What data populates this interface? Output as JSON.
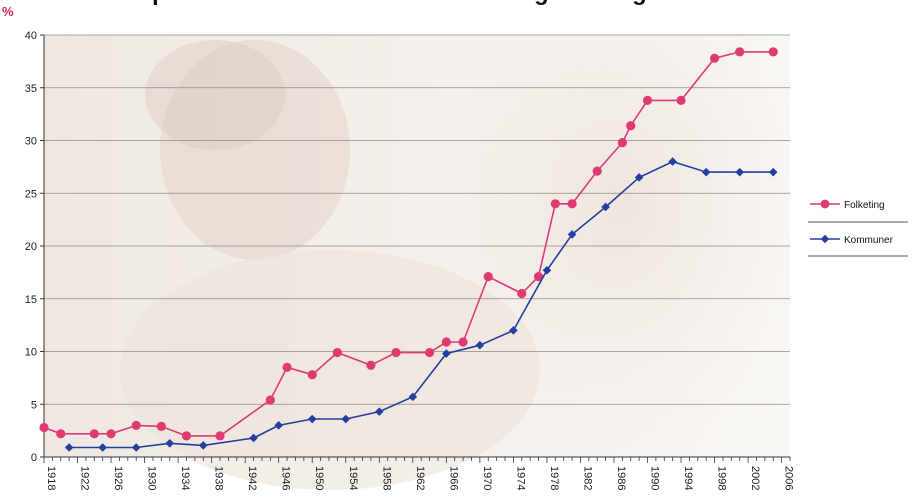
{
  "chart_data": {
    "type": "line",
    "title_visible_fragment": "p",
    "title_visible_fragment_2": "g",
    "title_visible_fragment_3": "g",
    "y_unit": "%",
    "ylim": [
      0,
      40
    ],
    "y_ticks": [
      0,
      5,
      10,
      15,
      20,
      25,
      30,
      35,
      40
    ],
    "xlim": [
      1918,
      2007
    ],
    "x_tick_labels": [
      "1918",
      "1922",
      "1926",
      "1930",
      "1934",
      "1938",
      "1942",
      "1946",
      "1950",
      "1954",
      "1958",
      "1962",
      "1966",
      "1970",
      "1974",
      "1978",
      "1982",
      "1986",
      "1990",
      "1994",
      "1998",
      "2002",
      "2006"
    ],
    "grid": true,
    "legend_position": "right",
    "series": [
      {
        "name": "Folketing",
        "color": "#e03a72",
        "marker": "circle",
        "points": [
          [
            1918,
            2.8
          ],
          [
            1920,
            2.2
          ],
          [
            1924,
            2.2
          ],
          [
            1926,
            2.2
          ],
          [
            1929,
            3.0
          ],
          [
            1932,
            2.9
          ],
          [
            1935,
            2.0
          ],
          [
            1939,
            2.0
          ],
          [
            1945,
            5.4
          ],
          [
            1947,
            8.5
          ],
          [
            1950,
            7.8
          ],
          [
            1953,
            9.9
          ],
          [
            1957,
            8.7
          ],
          [
            1960,
            9.9
          ],
          [
            1964,
            9.9
          ],
          [
            1966,
            10.9
          ],
          [
            1968,
            10.9
          ],
          [
            1971,
            17.1
          ],
          [
            1975,
            15.5
          ],
          [
            1977,
            17.1
          ],
          [
            1979,
            24.0
          ],
          [
            1981,
            24.0
          ],
          [
            1984,
            27.1
          ],
          [
            1987,
            29.8
          ],
          [
            1988,
            31.4
          ],
          [
            1990,
            33.8
          ],
          [
            1994,
            33.8
          ],
          [
            1998,
            37.8
          ],
          [
            2001,
            38.4
          ],
          [
            2005,
            38.4
          ]
        ]
      },
      {
        "name": "Kommuner",
        "color": "#2340a0",
        "marker": "diamond",
        "points": [
          [
            1921,
            0.9
          ],
          [
            1925,
            0.9
          ],
          [
            1929,
            0.9
          ],
          [
            1933,
            1.3
          ],
          [
            1937,
            1.1
          ],
          [
            1943,
            1.8
          ],
          [
            1946,
            3.0
          ],
          [
            1950,
            3.6
          ],
          [
            1954,
            3.6
          ],
          [
            1958,
            4.3
          ],
          [
            1962,
            5.7
          ],
          [
            1966,
            9.8
          ],
          [
            1970,
            10.6
          ],
          [
            1974,
            12.0
          ],
          [
            1978,
            17.7
          ],
          [
            1981,
            21.1
          ],
          [
            1985,
            23.7
          ],
          [
            1989,
            26.5
          ],
          [
            1993,
            28.0
          ],
          [
            1997,
            27.0
          ],
          [
            2001,
            27.0
          ],
          [
            2005,
            27.0
          ]
        ]
      }
    ]
  }
}
